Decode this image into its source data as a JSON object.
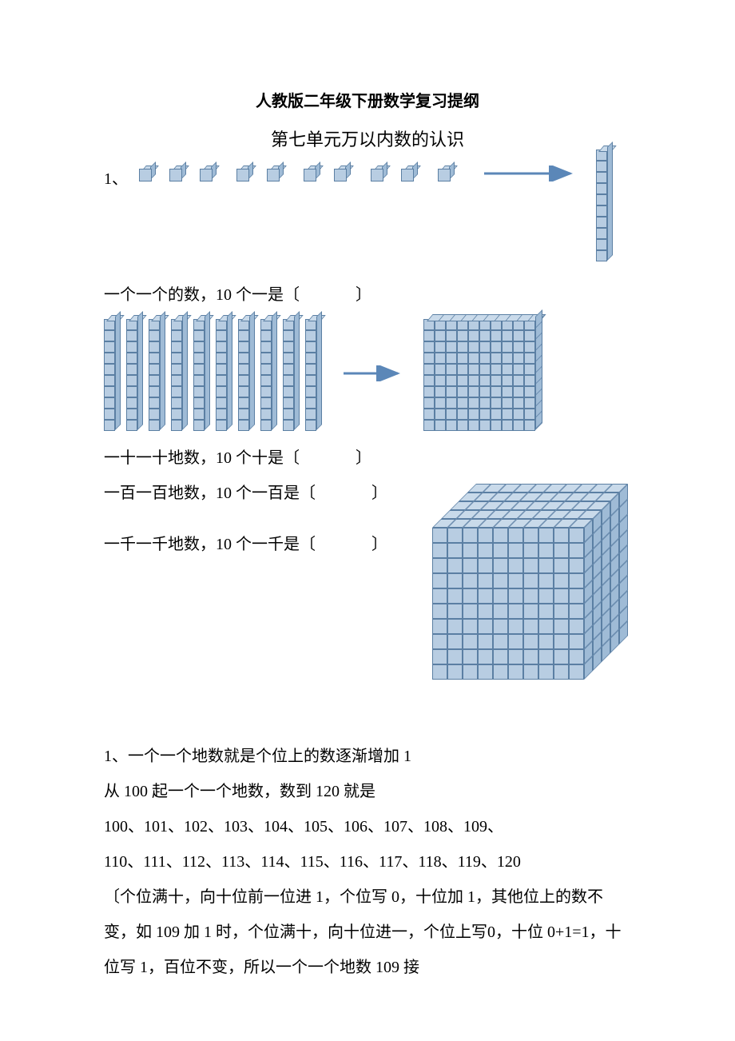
{
  "title": "人教版二年级下册数学复习提纲",
  "subtitle": "第七单元万以内数的认识",
  "item1_label": "1、",
  "q_units": "一个一个的数，10 个一是〔",
  "q_units_close": "〕",
  "q_tens": "一十一十地数，10 个十是〔",
  "q_tens_close": "〕",
  "q_hundreds": "一百一百地数，10 个一百是〔",
  "q_hundreds_close": "〕",
  "q_thousands": "一千一千地数，10 个一千是〔",
  "q_thousands_close": "〕",
  "para1": "1、一个一个地数就是个位上的数逐渐增加 1",
  "para2": "从 100 起一个一个地数，数到 120 就是",
  "para3": "100、101、102、103、104、105、106、107、108、109、",
  "para4": "110、111、112、113、114、115、116、117、118、119、120",
  "para5": "〔个位满十，向十位前一位进 1，个位写 0，十位加 1，其他位上的数不变，如 109 加 1 时，个位满十，向十位进一，个位上写0，十位 0+1=1，十位写 1，百位不变，所以一个一个地数 109 接",
  "colors": {
    "cube_front": "#b8cde2",
    "cube_top": "#c9daea",
    "cube_side": "#9fbbd6",
    "cube_border": "#5b7fa3",
    "arrow": "#5b87b8"
  },
  "diagram": {
    "units_count": 10,
    "stick_cells": 10,
    "flat_dim": 10,
    "cube_dim": 10
  }
}
